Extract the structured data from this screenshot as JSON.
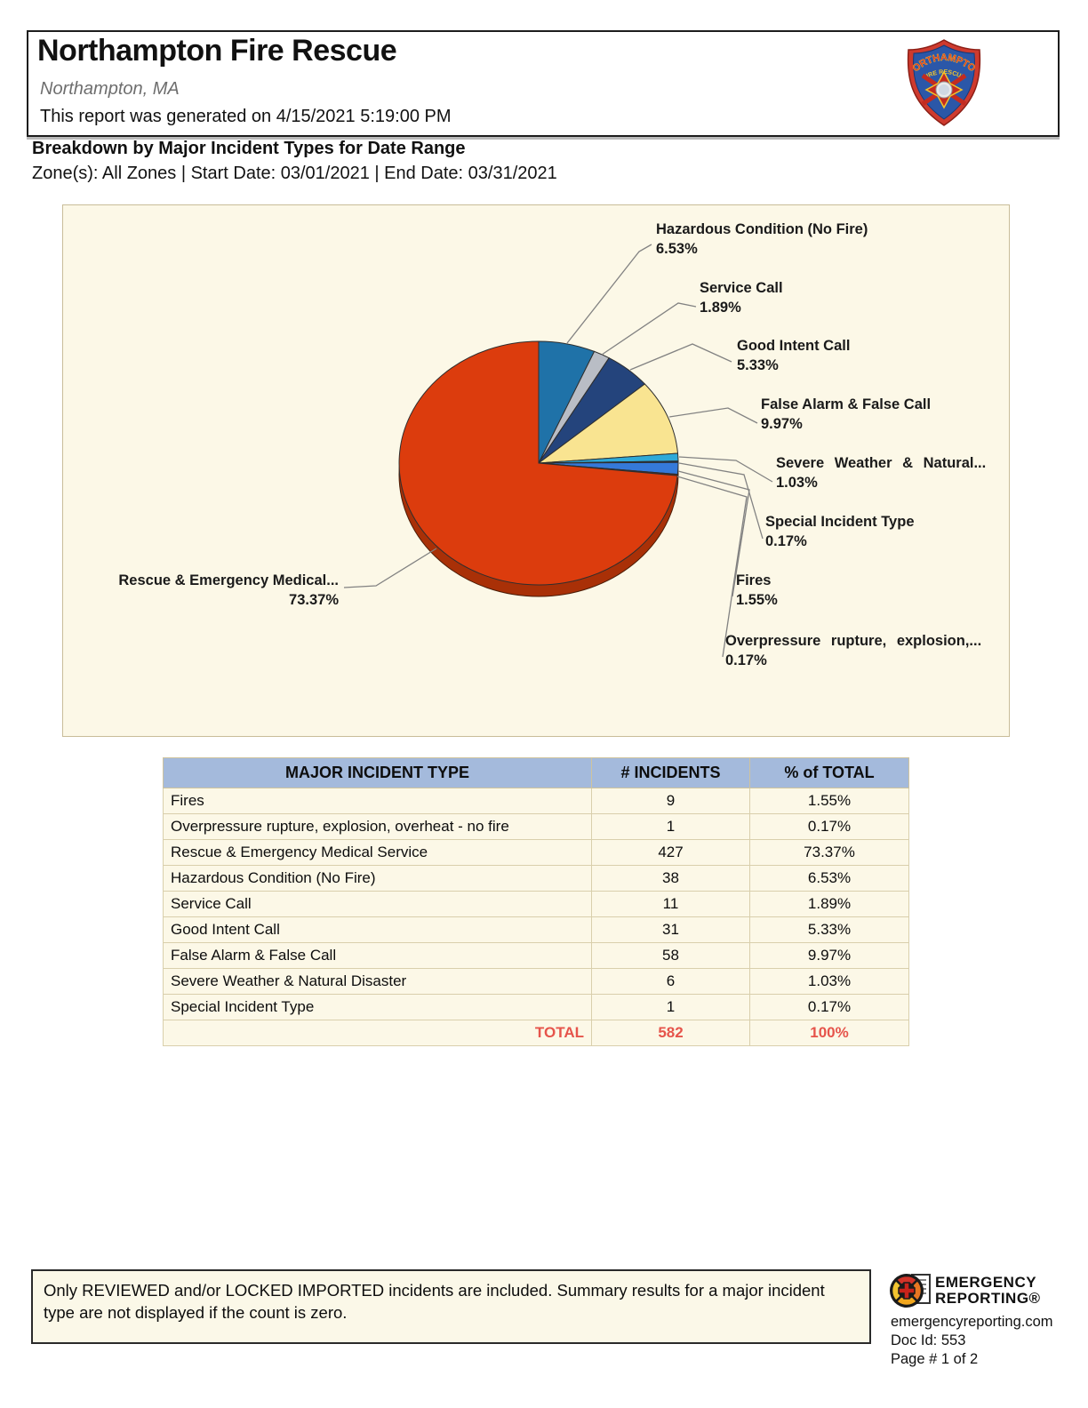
{
  "header": {
    "title": "Northampton Fire Rescue",
    "location": "Northampton, MA",
    "generated": "This report was generated on 4/15/2021 5:19:00 PM",
    "badge_top_text": "NORTHAMPTON",
    "badge_bottom_text": "FIRE RESCUE"
  },
  "report": {
    "title": "Breakdown by Major Incident Types for Date Range",
    "filters": "Zone(s): All Zones | Start Date: 03/01/2021 | End Date: 03/31/2021"
  },
  "chart_data": {
    "type": "pie",
    "style": "3d",
    "start_angle_deg": 0,
    "direction": "clockwise",
    "slices": [
      {
        "label": "Hazardous Condition (No Fire)",
        "pct": 6.53,
        "count": 38,
        "color": "#1F72A8"
      },
      {
        "label": "Service Call",
        "pct": 1.89,
        "count": 11,
        "color": "#B9BDC5"
      },
      {
        "label": "Good Intent Call",
        "pct": 5.33,
        "count": 31,
        "color": "#24447C"
      },
      {
        "label": "False Alarm & False Call",
        "pct": 9.97,
        "count": 58,
        "color": "#F9E491"
      },
      {
        "label": "Severe Weather & Natural Disaster",
        "pct": 1.03,
        "count": 6,
        "color": "#2EA9D8"
      },
      {
        "label": "Special Incident Type",
        "pct": 0.17,
        "count": 1,
        "color": "#173A66"
      },
      {
        "label": "Fires",
        "pct": 1.55,
        "count": 9,
        "color": "#3579D9"
      },
      {
        "label": "Overpressure rupture, explosion, overheat - no fire",
        "pct": 0.17,
        "count": 1,
        "color": "#7A2208"
      },
      {
        "label": "Rescue & Emergency Medical Service",
        "pct": 73.37,
        "count": 427,
        "color": "#DC3C0D"
      }
    ],
    "rim_color": "#A93007",
    "background": "#FCF8E7",
    "callouts": [
      {
        "name": "Hazardous Condition (No Fire)",
        "pct": "6.53%"
      },
      {
        "name": "Service Call",
        "pct": "1.89%"
      },
      {
        "name": "Good Intent Call",
        "pct": "5.33%"
      },
      {
        "name": "False Alarm & False Call",
        "pct": "9.97%"
      },
      {
        "name": "Severe Weather & Natural...",
        "pct": "1.03%"
      },
      {
        "name": "Special Incident Type",
        "pct": "0.17%"
      },
      {
        "name": "Fires",
        "pct": "1.55%"
      },
      {
        "name": "Overpressure rupture, explosion,...",
        "pct": "0.17%"
      },
      {
        "name": "Rescue & Emergency Medical...",
        "pct": "73.37%"
      }
    ]
  },
  "table": {
    "headers": [
      "MAJOR INCIDENT TYPE",
      "# INCIDENTS",
      "% of TOTAL"
    ],
    "rows": [
      [
        "Fires",
        "9",
        "1.55%"
      ],
      [
        "Overpressure rupture, explosion, overheat - no fire",
        "1",
        "0.17%"
      ],
      [
        "Rescue & Emergency Medical Service",
        "427",
        "73.37%"
      ],
      [
        "Hazardous Condition (No Fire)",
        "38",
        "6.53%"
      ],
      [
        "Service Call",
        "11",
        "1.89%"
      ],
      [
        "Good Intent Call",
        "31",
        "5.33%"
      ],
      [
        "False Alarm & False Call",
        "58",
        "9.97%"
      ],
      [
        "Severe Weather & Natural Disaster",
        "6",
        "1.03%"
      ],
      [
        "Special Incident Type",
        "1",
        "0.17%"
      ]
    ],
    "total": {
      "label": "TOTAL",
      "incidents": "582",
      "pct": "100%"
    },
    "header_bg": "#A4BADC",
    "total_color": "#E6544B"
  },
  "footer": {
    "note": "Only REVIEWED and/or LOCKED IMPORTED incidents are included.  Summary results for a major incident type are not displayed if the count is zero.",
    "brand_line1": "EMERGENCY",
    "brand_line2": "REPORTING®",
    "website": "emergencyreporting.com",
    "doc_id": "Doc Id: 553",
    "page": "Page # 1 of 2"
  }
}
